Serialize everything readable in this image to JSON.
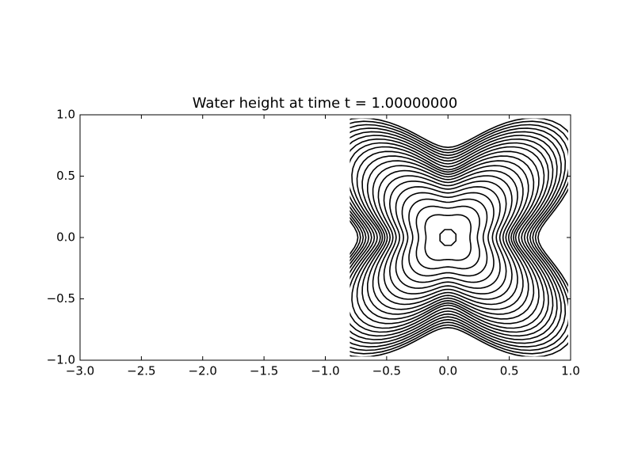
{
  "chart_data": {
    "type": "contour",
    "title": "Water height at time t =      1.00000000",
    "xlim": [
      -3,
      1
    ],
    "ylim": [
      -1,
      1
    ],
    "xticks": [
      {
        "value": -3,
        "label": "−3.0"
      },
      {
        "value": -2.5,
        "label": "−2.5"
      },
      {
        "value": -2,
        "label": "−2.0"
      },
      {
        "value": -1.5,
        "label": "−1.5"
      },
      {
        "value": -1,
        "label": "−1.0"
      },
      {
        "value": -0.5,
        "label": "−0.5"
      },
      {
        "value": 0,
        "label": "0.0"
      },
      {
        "value": 0.5,
        "label": "0.5"
      },
      {
        "value": 1,
        "label": "1.0"
      }
    ],
    "yticks": [
      {
        "value": -1,
        "label": "−1.0"
      },
      {
        "value": -0.5,
        "label": "−0.5"
      },
      {
        "value": 0,
        "label": "0.0"
      },
      {
        "value": 0.5,
        "label": "0.5"
      },
      {
        "value": 1,
        "label": "1.0"
      }
    ],
    "color": "#000000"
  }
}
